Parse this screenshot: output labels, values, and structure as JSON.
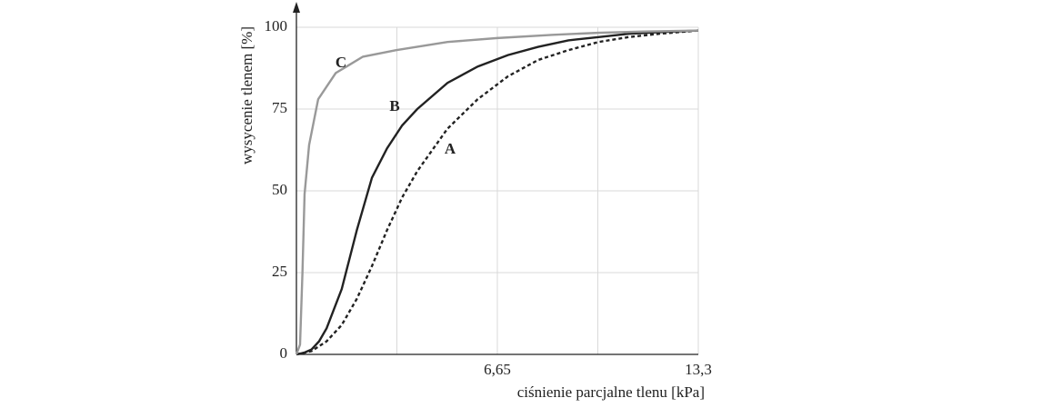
{
  "chart_data": {
    "type": "line",
    "x_label": "ciśnienie parcjalne tlenu [kPa]",
    "y_label": "wysycenie tlenem [%]",
    "xlim": [
      0,
      13.3
    ],
    "ylim": [
      0,
      100
    ],
    "xticks": [
      {
        "value": 3.325,
        "label": null
      },
      {
        "value": 6.65,
        "label": "6,65"
      },
      {
        "value": 9.975,
        "label": null
      },
      {
        "value": 13.3,
        "label": "13,3"
      }
    ],
    "yticks": [
      0,
      25,
      50,
      75,
      100
    ],
    "grid": true,
    "series": [
      {
        "name": "A",
        "color": "#222222",
        "dashed": true,
        "x": [
          0,
          0.5,
          1,
          1.5,
          2,
          2.5,
          3,
          3.5,
          4,
          5,
          6,
          7,
          8,
          9,
          10,
          11,
          12,
          13.3
        ],
        "values": [
          0,
          1,
          4,
          9,
          17,
          27,
          38,
          48,
          56,
          69,
          78,
          85,
          90,
          93,
          95.5,
          97,
          98,
          99
        ]
      },
      {
        "name": "B",
        "color": "#222222",
        "dashed": false,
        "x": [
          0,
          0.25,
          0.5,
          0.75,
          1,
          1.5,
          2,
          2.5,
          3,
          3.5,
          4,
          5,
          6,
          7,
          8,
          9,
          10,
          11,
          12,
          13.3
        ],
        "values": [
          0,
          0.5,
          1.5,
          4,
          8,
          20,
          38,
          54,
          63,
          70,
          75,
          83,
          88,
          91.5,
          94,
          96,
          97,
          98,
          98.5,
          99
        ]
      },
      {
        "name": "C",
        "color": "#999999",
        "dashed": false,
        "x": [
          0,
          0.12,
          0.2,
          0.27,
          0.42,
          0.72,
          1.3,
          2.2,
          3.3,
          5,
          6.65,
          8.5,
          9.975,
          11.5,
          13.3
        ],
        "values": [
          0,
          3,
          25,
          49,
          64,
          78,
          86,
          91,
          93,
          95.5,
          96.7,
          97.7,
          98.3,
          98.7,
          99
        ]
      }
    ]
  }
}
